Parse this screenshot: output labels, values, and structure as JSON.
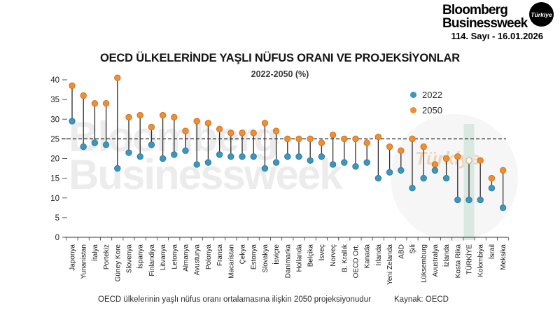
{
  "masthead": {
    "brand_line1": "Bloomberg",
    "brand_line2": "Businessweek",
    "brand_badge": "Türkiye",
    "issue": "114. Sayı - 16.01.2026"
  },
  "watermark": {
    "line1": "Bloomberg",
    "line2": "Businessweek",
    "circle_label": "Türkiye"
  },
  "footnote": "OECD ülkelerinin yaşlı nüfus oranı ortalamasına ilişkin 2050 projeksiyonudur",
  "source": "Kaynak: OECD",
  "chart_data": {
    "type": "lollipop-dumbbell",
    "title": "OECD ÜLKELERİNDE YAŞLI NÜFUS ORANI VE PROJEKSİYONLAR",
    "subtitle": "2022-2050 (%)",
    "ylim": [
      0,
      40
    ],
    "yticks": [
      0,
      5,
      10,
      15,
      20,
      25,
      30,
      35,
      40
    ],
    "grid": false,
    "legend_position": "upper-right",
    "reference_line": {
      "value": 25,
      "style": "dashed",
      "note": "OECD ülkelerinin yaşlı nüfus oranı ortalamasına ilişkin 2050 projeksiyonudur"
    },
    "highlight_country": "TÜRKİYE",
    "legend": [
      {
        "label": "2022",
        "color": "#3D97BC"
      },
      {
        "label": "2050",
        "color": "#EF8E33"
      }
    ],
    "colors": {
      "blue": "#3D97BC",
      "blue_stroke": "#2C7EA1",
      "orange": "#EF8E33",
      "orange_stroke": "#CF7322",
      "stem": "#2D2D2D",
      "reference": "#1A1A1A",
      "highlight_band": "#D9E8E1",
      "highlight_dot_fill": "#FFFFFF",
      "highlight_dot_stroke": "#E6B68E"
    },
    "categories": [
      "Japonya",
      "Yunanistan",
      "İtalya",
      "Portekiz",
      "Güney Kore",
      "Slovenya",
      "İspanya",
      "Finlandiya",
      "Litvanya",
      "Letonya",
      "Almanya",
      "Avusturya",
      "Polonya",
      "Fransa",
      "Macaristan",
      "Çekya",
      "Estonya",
      "Slovakya",
      "İsviçre",
      "Danimarka",
      "Hollanda",
      "Belçika",
      "İsveç",
      "Norveç",
      "B. Krallık",
      "OECD Ort.",
      "Kanada",
      "İrlanda",
      "Yeni Zelanda",
      "ABD",
      "Şili",
      "Lüksemburg",
      "Avustralya",
      "İzlanda",
      "Kosta Rika",
      "TÜRKİYE",
      "Kolombiya",
      "İsrail",
      "Meksika"
    ],
    "series": [
      {
        "name": "2022",
        "values": [
          29.5,
          23,
          24,
          23.5,
          17.5,
          21.5,
          20.5,
          23.5,
          20,
          21,
          22,
          18.5,
          19,
          21,
          20.5,
          20.5,
          20.5,
          17.5,
          19,
          20.5,
          20.5,
          19.5,
          20.5,
          18.5,
          19,
          18,
          19,
          15,
          16.5,
          17,
          12.5,
          15,
          17,
          15,
          9.5,
          9.5,
          9.5,
          12.5,
          7.5
        ]
      },
      {
        "name": "2050",
        "values": [
          38.5,
          36,
          34,
          34,
          40.5,
          30.5,
          31,
          28,
          31,
          30.5,
          27,
          29.5,
          29,
          27.5,
          26.5,
          26.5,
          26.5,
          29,
          27,
          25,
          25,
          25,
          24,
          26,
          25,
          25,
          24,
          25.5,
          23,
          22,
          25,
          23,
          18.5,
          20,
          20.5,
          19.5,
          19.5,
          15,
          17
        ]
      }
    ]
  }
}
